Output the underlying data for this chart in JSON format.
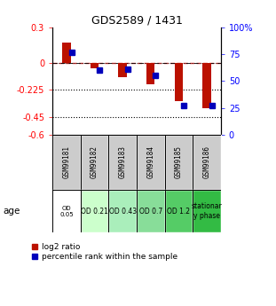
{
  "title": "GDS2589 / 1431",
  "samples": [
    "GSM99181",
    "GSM99182",
    "GSM99183",
    "GSM99184",
    "GSM99185",
    "GSM99186"
  ],
  "log2_ratio": [
    0.175,
    -0.04,
    -0.12,
    -0.18,
    -0.32,
    -0.38
  ],
  "percentile_rank_pct": [
    77,
    60,
    61,
    55,
    27,
    27
  ],
  "ylim_left": [
    -0.6,
    0.3
  ],
  "ylim_right": [
    0,
    100
  ],
  "yticks_left": [
    0.3,
    0,
    -0.225,
    -0.45,
    -0.6
  ],
  "ytick_labels_left": [
    "0.3",
    "0",
    "-0.225",
    "-0.45",
    "-0.6"
  ],
  "yticks_right": [
    100,
    75,
    50,
    25,
    0
  ],
  "ytick_labels_right": [
    "100%",
    "75",
    "50",
    "25",
    "0"
  ],
  "dotted_lines": [
    -0.225,
    -0.45
  ],
  "bar_color_red": "#bb1100",
  "bar_color_blue": "#0000bb",
  "age_labels": [
    "OD\n0.05",
    "OD 0.21",
    "OD 0.43",
    "OD 0.7",
    "OD 1.2",
    "stationar\ny phase"
  ],
  "age_bg_colors": [
    "#ffffff",
    "#ccffcc",
    "#aaeebb",
    "#88dd99",
    "#55cc66",
    "#33bb44"
  ],
  "sample_bg_color": "#cccccc",
  "legend_red": "log2 ratio",
  "legend_blue": "percentile rank within the sample",
  "bar_width": 0.3
}
